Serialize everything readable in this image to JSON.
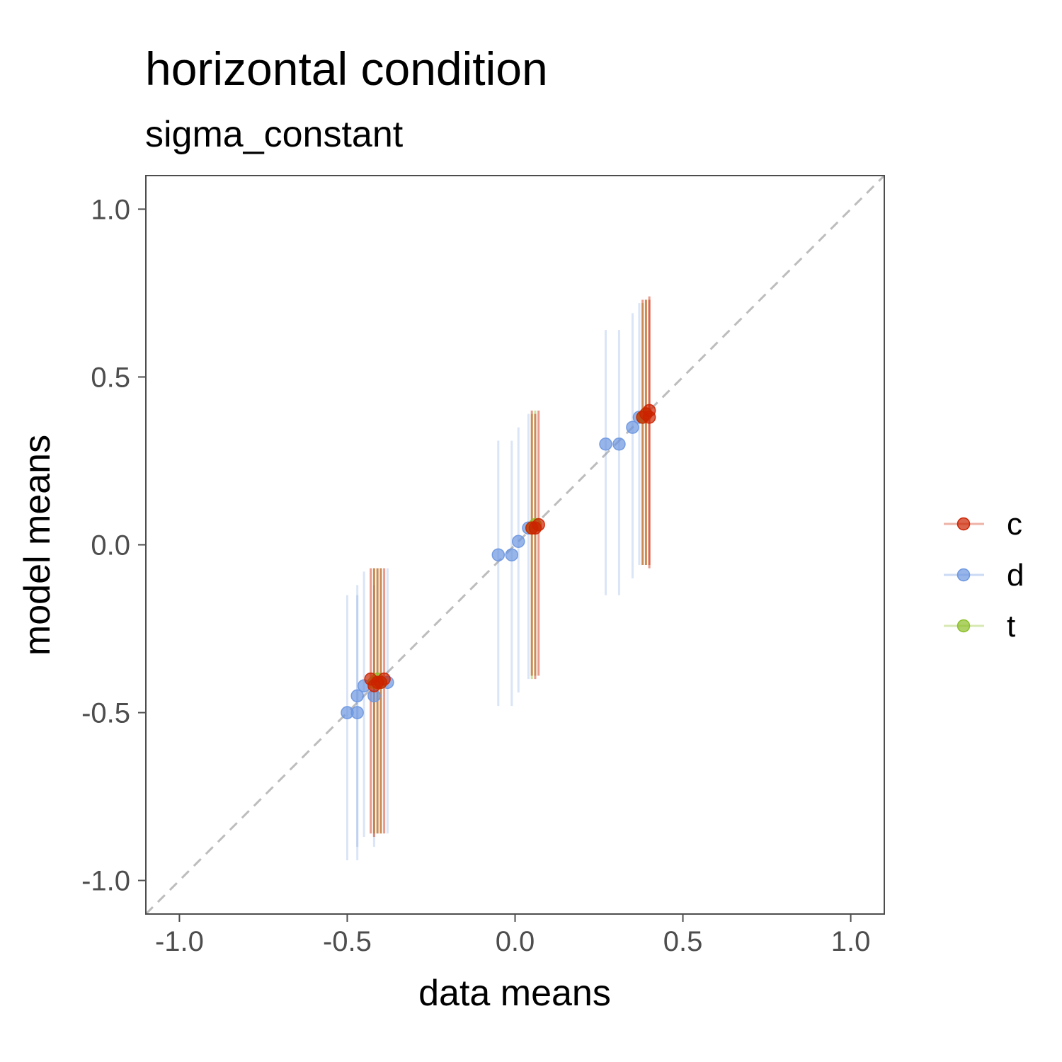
{
  "chart_data": {
    "type": "scatter",
    "title": "horizontal condition",
    "subtitle": "sigma_constant",
    "xlabel": "data means",
    "ylabel": "model means",
    "xlim": [
      -1.1,
      1.1
    ],
    "ylim": [
      -1.1,
      1.1
    ],
    "x_ticks": [
      -1.0,
      -0.5,
      0.0,
      0.5,
      1.0
    ],
    "x_tick_labels": [
      "-1.0",
      "-0.5",
      "0.0",
      "0.5",
      "1.0"
    ],
    "y_ticks": [
      -1.0,
      -0.5,
      0.0,
      0.5,
      1.0
    ],
    "y_tick_labels": [
      "-1.0",
      "-0.5",
      "0.0",
      "0.5",
      "1.0"
    ],
    "reference_line": "y = x (dashed, grey)",
    "grid": false,
    "legend_position": "right",
    "series": [
      {
        "name": "c",
        "color": "#cc2200",
        "points": [
          {
            "x": -0.43,
            "y": -0.4,
            "lo": -0.86,
            "hi": -0.07
          },
          {
            "x": -0.42,
            "y": -0.42,
            "lo": -0.87,
            "hi": -0.07
          },
          {
            "x": -0.41,
            "y": -0.41,
            "lo": -0.86,
            "hi": -0.07
          },
          {
            "x": -0.4,
            "y": -0.41,
            "lo": -0.86,
            "hi": -0.07
          },
          {
            "x": -0.39,
            "y": -0.4,
            "lo": -0.86,
            "hi": -0.07
          },
          {
            "x": 0.05,
            "y": 0.05,
            "lo": -0.39,
            "hi": 0.4
          },
          {
            "x": 0.06,
            "y": 0.05,
            "lo": -0.4,
            "hi": 0.39
          },
          {
            "x": 0.07,
            "y": 0.06,
            "lo": -0.39,
            "hi": 0.4
          },
          {
            "x": 0.38,
            "y": 0.38,
            "lo": -0.06,
            "hi": 0.73
          },
          {
            "x": 0.39,
            "y": 0.39,
            "lo": -0.06,
            "hi": 0.73
          },
          {
            "x": 0.4,
            "y": 0.38,
            "lo": -0.07,
            "hi": 0.73
          },
          {
            "x": 0.4,
            "y": 0.4,
            "lo": -0.06,
            "hi": 0.74
          }
        ]
      },
      {
        "name": "d",
        "color": "#6b96e0",
        "points": [
          {
            "x": -0.5,
            "y": -0.5,
            "lo": -0.94,
            "hi": -0.15
          },
          {
            "x": -0.47,
            "y": -0.5,
            "lo": -0.94,
            "hi": -0.15
          },
          {
            "x": -0.47,
            "y": -0.45,
            "lo": -0.9,
            "hi": -0.12
          },
          {
            "x": -0.45,
            "y": -0.42,
            "lo": -0.87,
            "hi": -0.08
          },
          {
            "x": -0.42,
            "y": -0.45,
            "lo": -0.9,
            "hi": -0.12
          },
          {
            "x": -0.38,
            "y": -0.41,
            "lo": -0.86,
            "hi": -0.07
          },
          {
            "x": -0.05,
            "y": -0.03,
            "lo": -0.48,
            "hi": 0.31
          },
          {
            "x": -0.01,
            "y": -0.03,
            "lo": -0.48,
            "hi": 0.31
          },
          {
            "x": 0.01,
            "y": 0.01,
            "lo": -0.44,
            "hi": 0.35
          },
          {
            "x": 0.04,
            "y": 0.05,
            "lo": -0.4,
            "hi": 0.39
          },
          {
            "x": 0.27,
            "y": 0.3,
            "lo": -0.15,
            "hi": 0.64
          },
          {
            "x": 0.31,
            "y": 0.3,
            "lo": -0.15,
            "hi": 0.64
          },
          {
            "x": 0.35,
            "y": 0.35,
            "lo": -0.1,
            "hi": 0.69
          },
          {
            "x": 0.37,
            "y": 0.38,
            "lo": -0.06,
            "hi": 0.72
          }
        ]
      },
      {
        "name": "t",
        "color": "#8cbf26",
        "points": [
          {
            "x": -0.42,
            "y": -0.41,
            "lo": -0.86,
            "hi": -0.07
          },
          {
            "x": -0.41,
            "y": -0.4,
            "lo": -0.86,
            "hi": -0.07
          },
          {
            "x": -0.4,
            "y": -0.41,
            "lo": -0.86,
            "hi": -0.07
          },
          {
            "x": 0.05,
            "y": 0.05,
            "lo": -0.4,
            "hi": 0.39
          },
          {
            "x": 0.06,
            "y": 0.06,
            "lo": -0.39,
            "hi": 0.4
          },
          {
            "x": 0.38,
            "y": 0.38,
            "lo": -0.06,
            "hi": 0.72
          },
          {
            "x": 0.39,
            "y": 0.39,
            "lo": -0.06,
            "hi": 0.73
          }
        ]
      }
    ]
  }
}
